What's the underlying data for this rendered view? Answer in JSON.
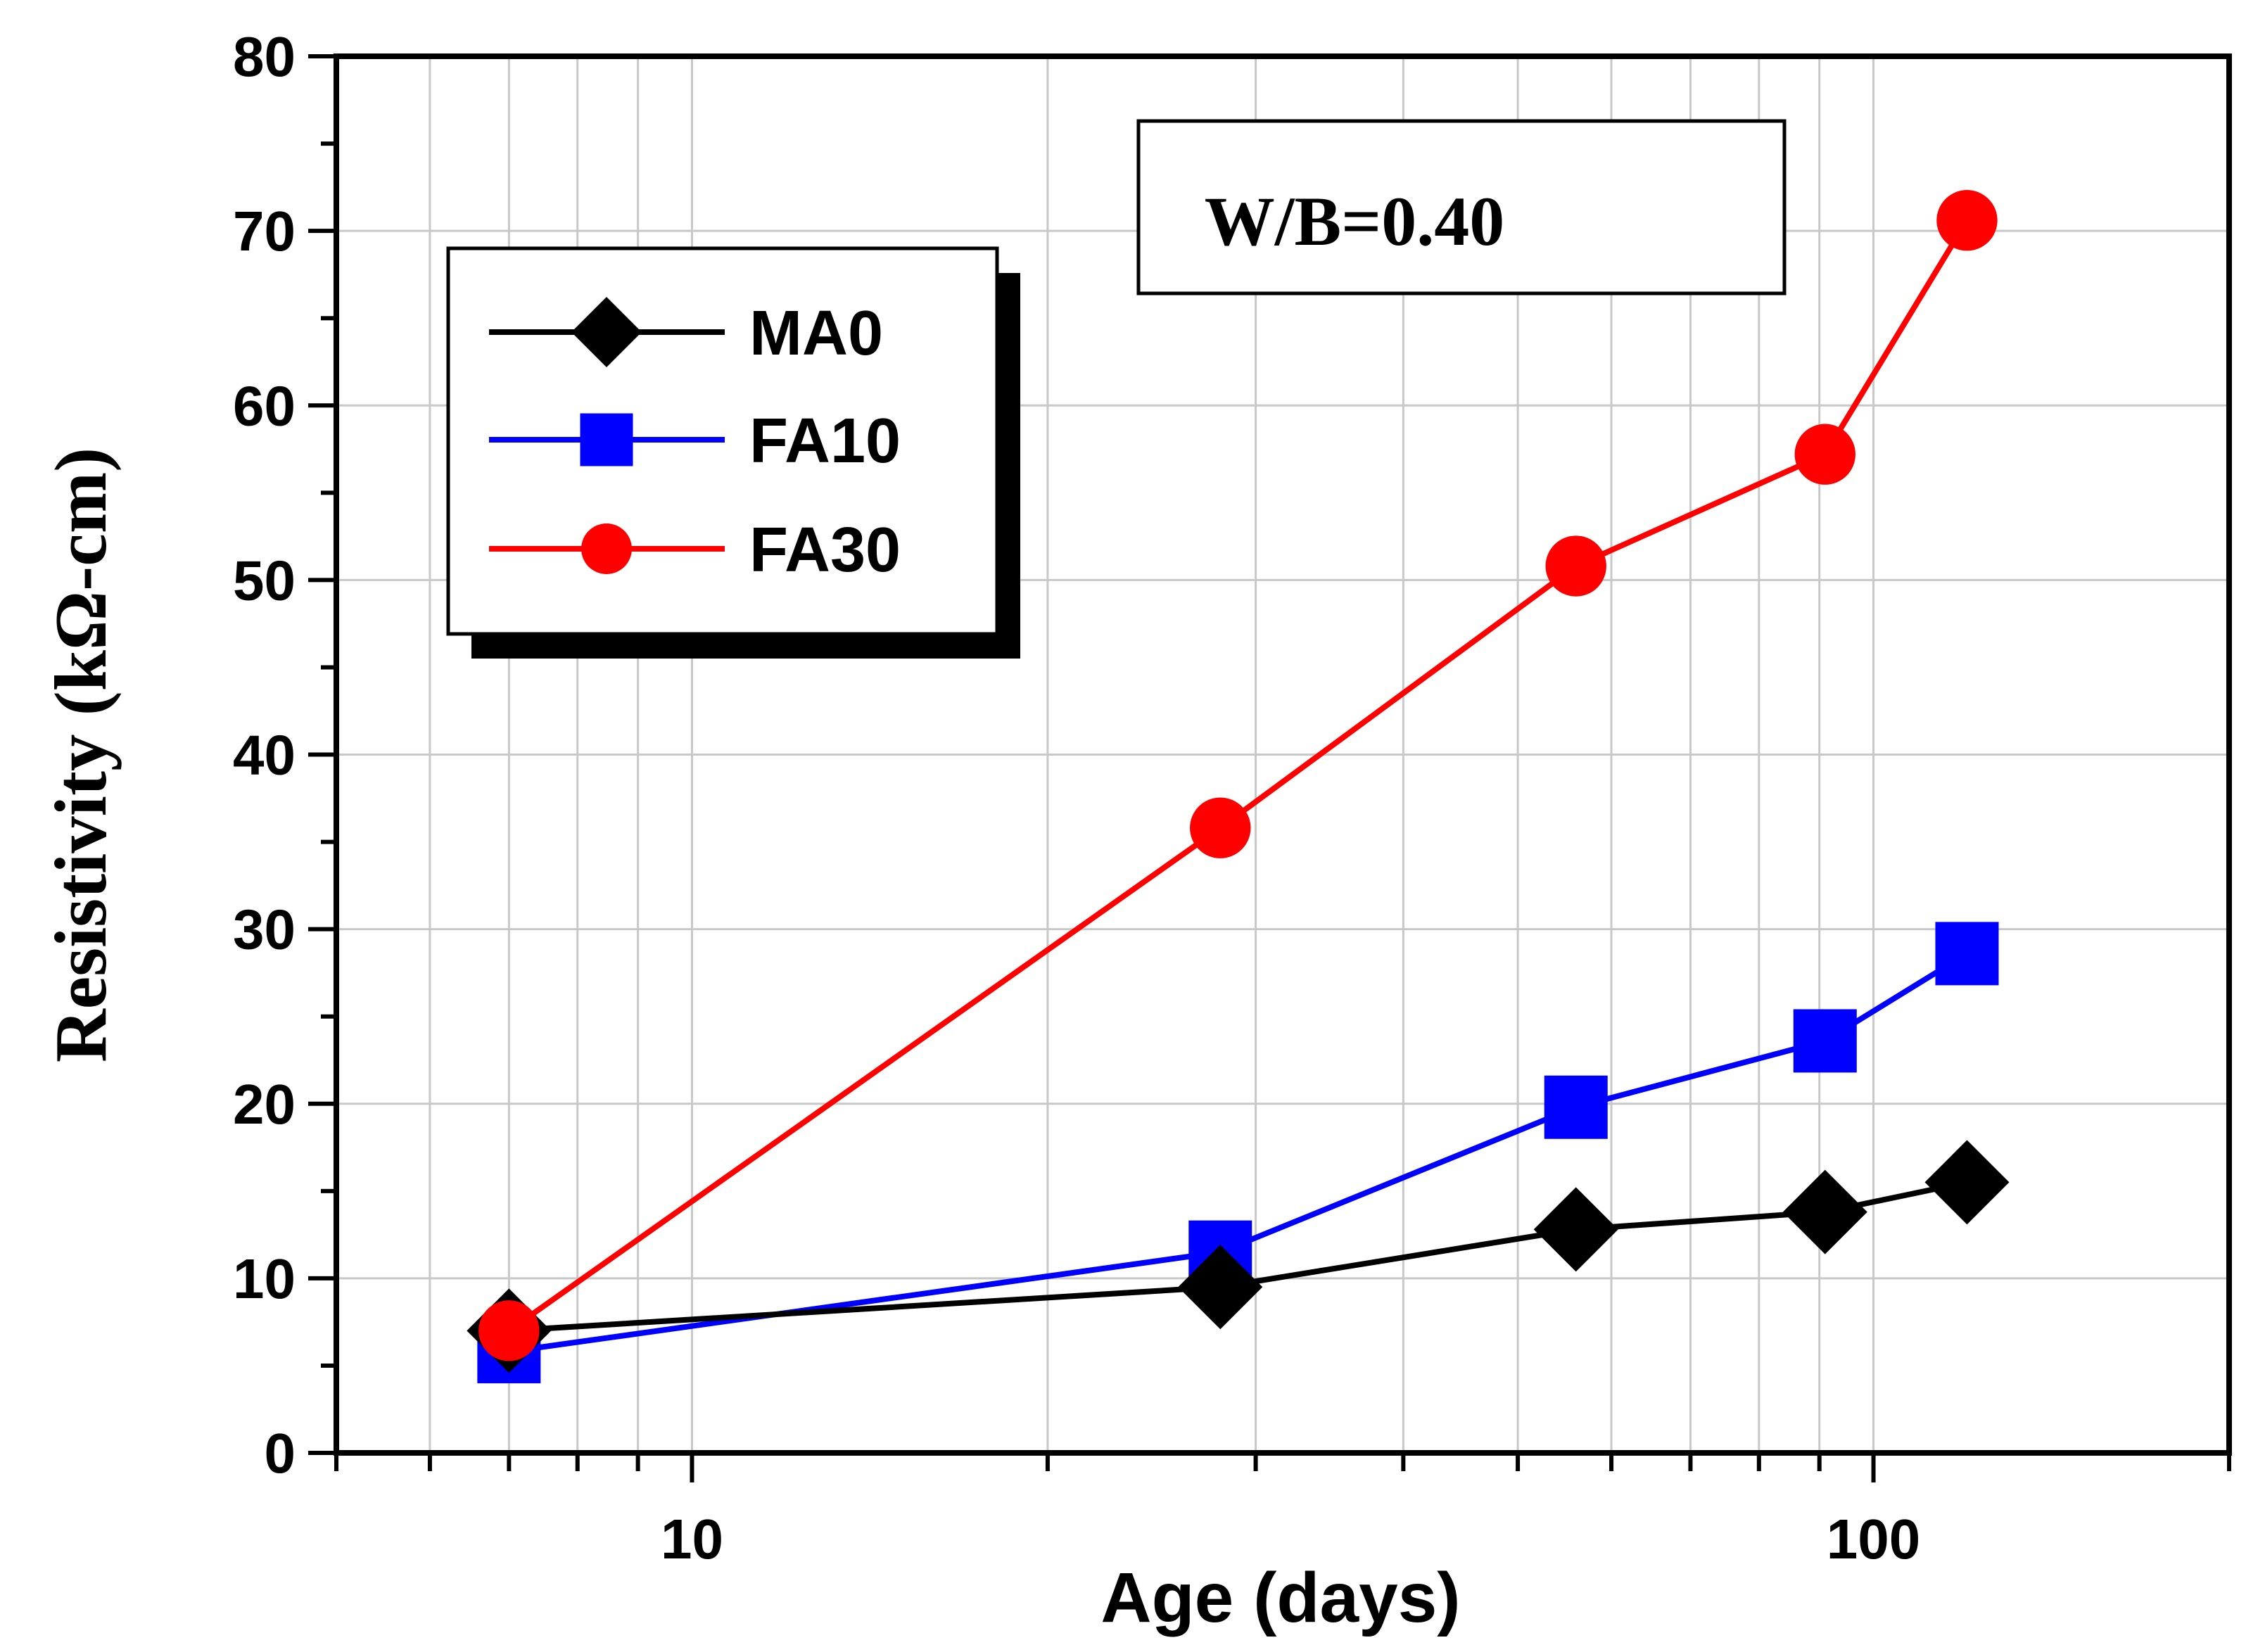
{
  "chart_data": {
    "type": "line",
    "title": "",
    "xlabel": "Age (days)",
    "ylabel": "Resistivity (kΩ-cm)",
    "xscale": "log",
    "xlim": [
      5,
      200
    ],
    "ylim": [
      0,
      80
    ],
    "y_ticks": [
      0,
      10,
      20,
      30,
      40,
      50,
      60,
      70,
      80
    ],
    "x_tick_labels": [
      {
        "value": 10,
        "label": "10"
      },
      {
        "value": 100,
        "label": "100"
      }
    ],
    "grid": true,
    "legend_position": "top-left",
    "annotation": "W/B=0.40",
    "series": [
      {
        "name": "MA0",
        "color": "#000000",
        "marker": "diamond",
        "x": [
          7,
          28,
          56,
          91,
          120
        ],
        "y": [
          7.0,
          9.5,
          12.8,
          13.8,
          15.5
        ]
      },
      {
        "name": "FA10",
        "color": "#0000ff",
        "marker": "square",
        "x": [
          7,
          28,
          56,
          91,
          120
        ],
        "y": [
          5.8,
          11.5,
          19.8,
          23.6,
          28.6
        ]
      },
      {
        "name": "FA30",
        "color": "#ff0000",
        "marker": "circle",
        "x": [
          7,
          28,
          56,
          91,
          120
        ],
        "y": [
          7.0,
          35.8,
          50.8,
          57.2,
          70.6
        ]
      }
    ]
  }
}
